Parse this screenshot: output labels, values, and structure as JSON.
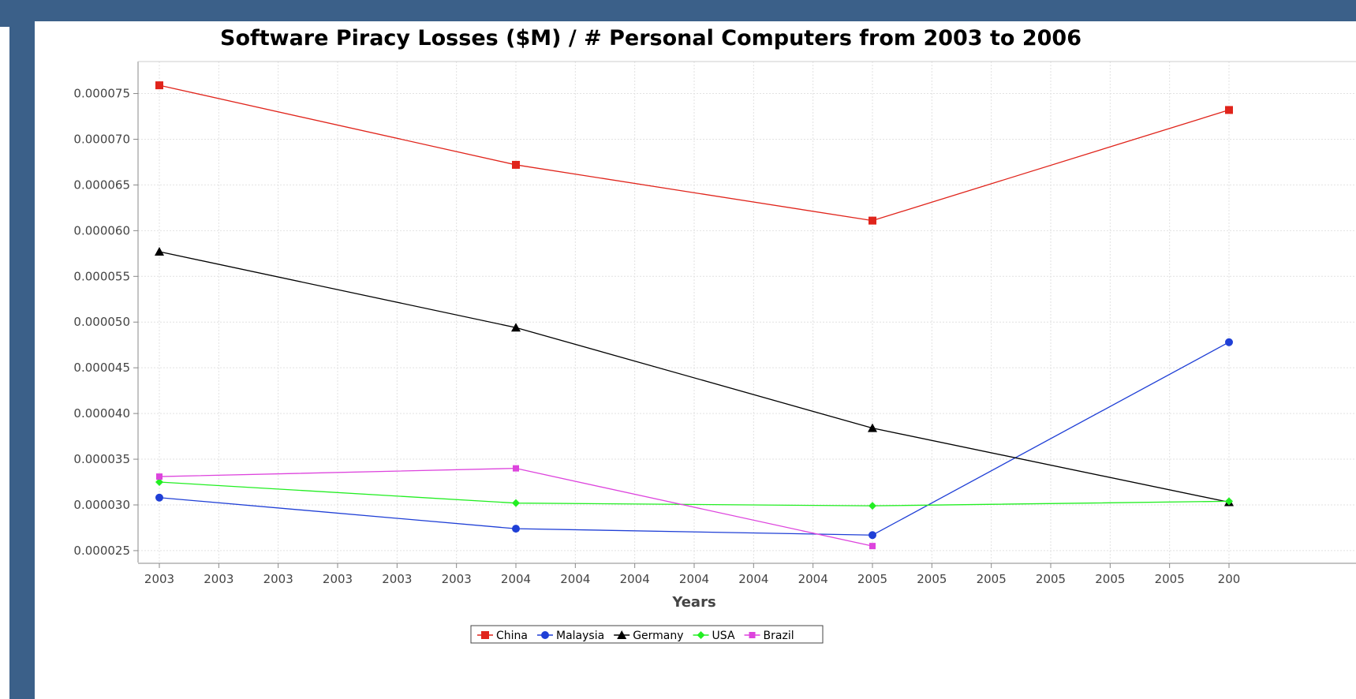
{
  "chart_data": {
    "type": "line",
    "title": "Software Piracy Losses ($M) / # Personal Computers from 2003 to 2006",
    "xlabel": "Years",
    "ylabel": "",
    "x": [
      2003,
      2004,
      2005,
      2006
    ],
    "x_tick_labels": [
      "2003",
      "2003",
      "2003",
      "2003",
      "2003",
      "2003",
      "2004",
      "2004",
      "2004",
      "2004",
      "2004",
      "2004",
      "2005",
      "2005",
      "2005",
      "2005",
      "2005",
      "2005",
      "200"
    ],
    "y_tick_labels": [
      "0.000075",
      "0.000070",
      "0.000065",
      "0.000060",
      "0.000055",
      "0.000050",
      "0.000045",
      "0.000040",
      "0.000035",
      "0.000030",
      "0.000025"
    ],
    "ylim": [
      2.37e-05,
      7.85e-05
    ],
    "grid": true,
    "legend_position": "bottom",
    "series": [
      {
        "name": "China",
        "color": "#e0241b",
        "marker": "square",
        "values": [
          7.59e-05,
          6.72e-05,
          6.11e-05,
          7.32e-05
        ]
      },
      {
        "name": "Malaysia",
        "color": "#1f3fd6",
        "marker": "circle",
        "values": [
          3.08e-05,
          2.74e-05,
          2.67e-05,
          4.78e-05
        ]
      },
      {
        "name": "Germany",
        "color": "#000000",
        "marker": "triangle",
        "values": [
          5.77e-05,
          4.94e-05,
          3.84e-05,
          3.03e-05
        ]
      },
      {
        "name": "USA",
        "color": "#22ee22",
        "marker": "diamond",
        "values": [
          3.25e-05,
          3.02e-05,
          2.99e-05,
          3.04e-05
        ]
      },
      {
        "name": "Brazil",
        "color": "#dd44dd",
        "marker": "small-square",
        "values": [
          3.31e-05,
          3.4e-05,
          2.55e-05,
          null
        ]
      }
    ]
  }
}
